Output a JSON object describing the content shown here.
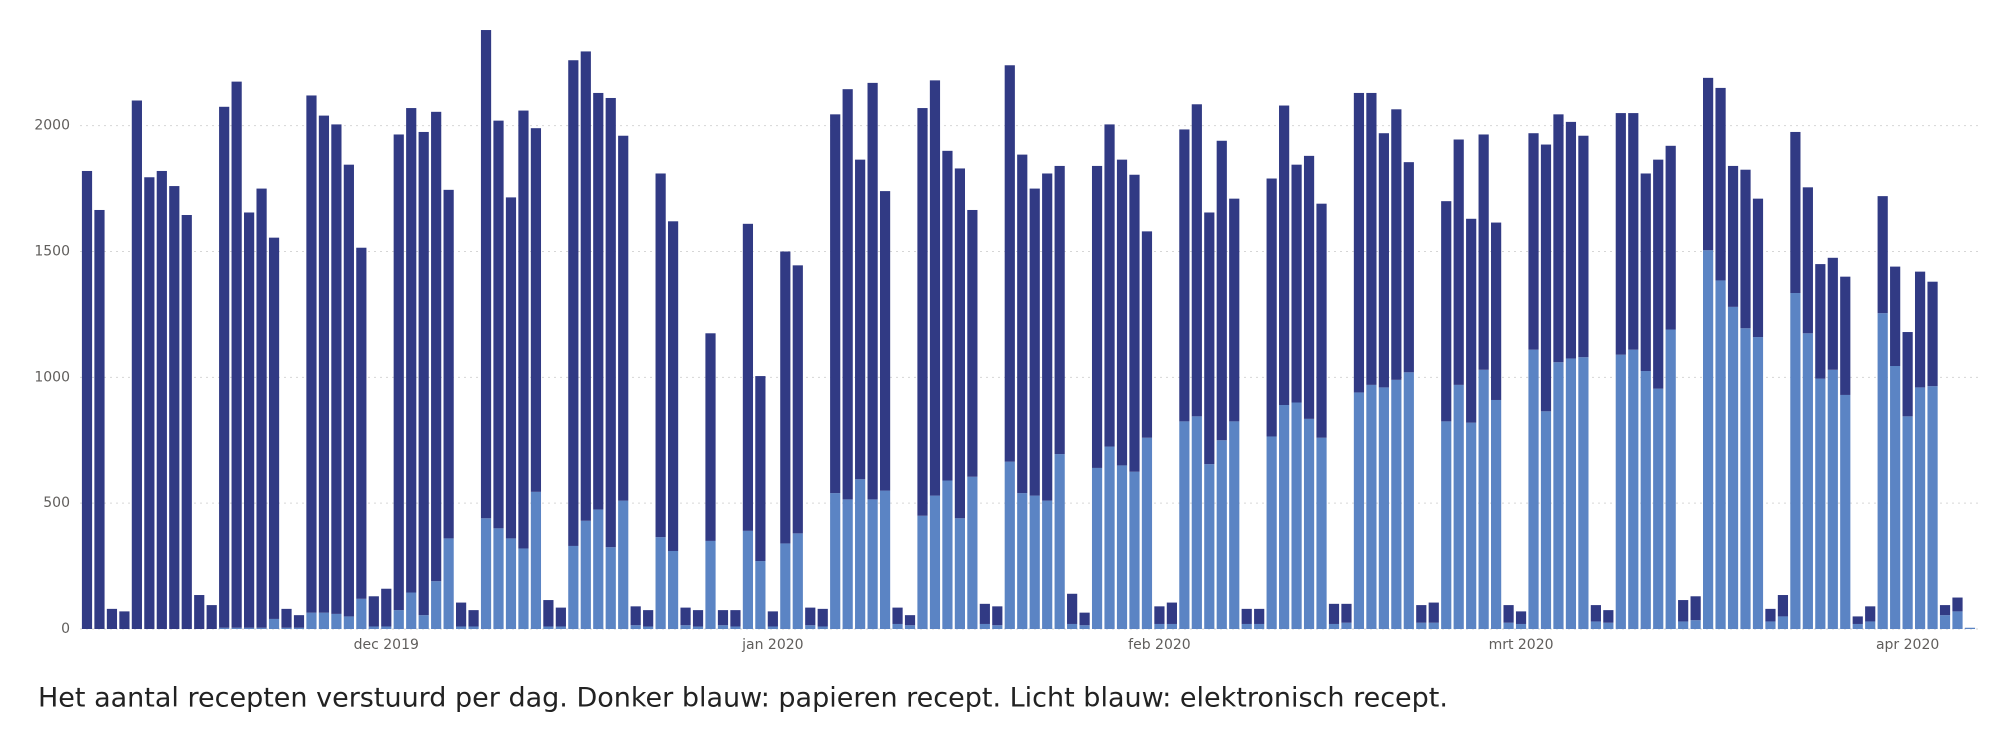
{
  "chart_data": {
    "type": "stacked-bar",
    "caption": "Het aantal recepten verstuurd per dag. Donker blauw: papieren recept. Licht blauw: elektronisch recept.",
    "categories": [
      null,
      null,
      null,
      null,
      null,
      null,
      null,
      null,
      null,
      null,
      null,
      null,
      null,
      null,
      null,
      null,
      null,
      null,
      null,
      null,
      null,
      null,
      null,
      null,
      "dec 2019",
      null,
      null,
      null,
      null,
      null,
      null,
      null,
      null,
      null,
      null,
      null,
      null,
      null,
      null,
      null,
      null,
      null,
      null,
      null,
      null,
      null,
      null,
      null,
      null,
      null,
      null,
      null,
      null,
      null,
      null,
      "jan 2020",
      null,
      null,
      null,
      null,
      null,
      null,
      null,
      null,
      null,
      null,
      null,
      null,
      null,
      null,
      null,
      null,
      null,
      null,
      null,
      null,
      null,
      null,
      null,
      null,
      null,
      null,
      null,
      null,
      null,
      null,
      "feb 2020",
      null,
      null,
      null,
      null,
      null,
      null,
      null,
      null,
      null,
      null,
      null,
      null,
      null,
      null,
      null,
      null,
      null,
      null,
      null,
      null,
      null,
      null,
      null,
      null,
      null,
      null,
      null,
      null,
      "mrt 2020",
      null,
      null,
      null,
      null,
      null,
      null,
      null,
      null,
      null,
      null,
      null,
      null,
      null,
      null,
      null,
      null,
      null,
      null,
      null,
      null,
      null,
      null,
      null,
      null,
      null,
      null,
      null,
      null,
      null,
      null,
      "apr 2020",
      null,
      null,
      null,
      null,
      null
    ],
    "series": [
      {
        "color": "#5b84c4",
        "values": [
          0,
          0,
          0,
          0,
          0,
          0,
          0,
          0,
          0,
          0,
          0,
          5,
          5,
          5,
          5,
          40,
          5,
          5,
          65,
          65,
          60,
          50,
          120,
          10,
          10,
          75,
          145,
          55,
          190,
          360,
          10,
          10,
          440,
          400,
          360,
          320,
          545,
          10,
          10,
          330,
          430,
          475,
          325,
          510,
          15,
          10,
          365,
          310,
          15,
          10,
          350,
          15,
          10,
          390,
          270,
          10,
          340,
          380,
          15,
          10,
          540,
          515,
          595,
          515,
          550,
          20,
          15,
          450,
          530,
          590,
          440,
          605,
          20,
          15,
          665,
          540,
          530,
          510,
          695,
          20,
          15,
          640,
          725,
          650,
          625,
          760,
          20,
          20,
          825,
          845,
          655,
          750,
          825,
          20,
          20,
          765,
          890,
          900,
          835,
          760,
          20,
          25,
          940,
          970,
          960,
          990,
          1020,
          25,
          25,
          825,
          970,
          820,
          1030,
          910,
          25,
          20,
          1110,
          865,
          1060,
          1075,
          1080,
          30,
          25,
          1090,
          1110,
          1025,
          955,
          1190,
          30,
          35,
          1505,
          1385,
          1280,
          1195,
          1160,
          30,
          50,
          1335,
          1175,
          995,
          1030,
          930,
          20,
          30,
          1255,
          1045,
          845,
          960,
          965,
          55,
          70,
          5
        ]
      },
      {
        "color": "#313a84",
        "values": [
          1820,
          1665,
          80,
          70,
          2100,
          1795,
          1820,
          1760,
          1645,
          135,
          95,
          2070,
          2170,
          1650,
          1745,
          1515,
          75,
          50,
          2055,
          1975,
          1945,
          1795,
          1395,
          120,
          150,
          1890,
          1925,
          1920,
          1865,
          1385,
          95,
          65,
          1940,
          1620,
          1355,
          1740,
          1445,
          105,
          75,
          1930,
          1865,
          1655,
          1785,
          1450,
          75,
          65,
          1445,
          1310,
          70,
          65,
          825,
          60,
          65,
          1220,
          735,
          60,
          1160,
          1065,
          70,
          70,
          1505,
          1630,
          1270,
          1655,
          1190,
          65,
          40,
          1620,
          1650,
          1310,
          1390,
          1060,
          80,
          75,
          1575,
          1345,
          1220,
          1300,
          1145,
          120,
          50,
          1200,
          1280,
          1215,
          1180,
          820,
          70,
          85,
          1160,
          1240,
          1000,
          1190,
          885,
          60,
          60,
          1025,
          1190,
          945,
          1045,
          930,
          80,
          75,
          1190,
          1160,
          1010,
          1075,
          835,
          70,
          80,
          875,
          975,
          810,
          935,
          705,
          70,
          50,
          860,
          1060,
          985,
          940,
          880,
          65,
          50,
          960,
          940,
          785,
          910,
          730,
          85,
          95,
          685,
          765,
          560,
          630,
          550,
          50,
          85,
          640,
          580,
          455,
          445,
          470,
          30,
          60,
          465,
          395,
          335,
          460,
          415,
          40,
          55,
          0
        ]
      }
    ],
    "ylim": [
      0,
      2400
    ],
    "yticks": [
      0,
      500,
      1000,
      1500,
      2000
    ],
    "grid": true
  }
}
